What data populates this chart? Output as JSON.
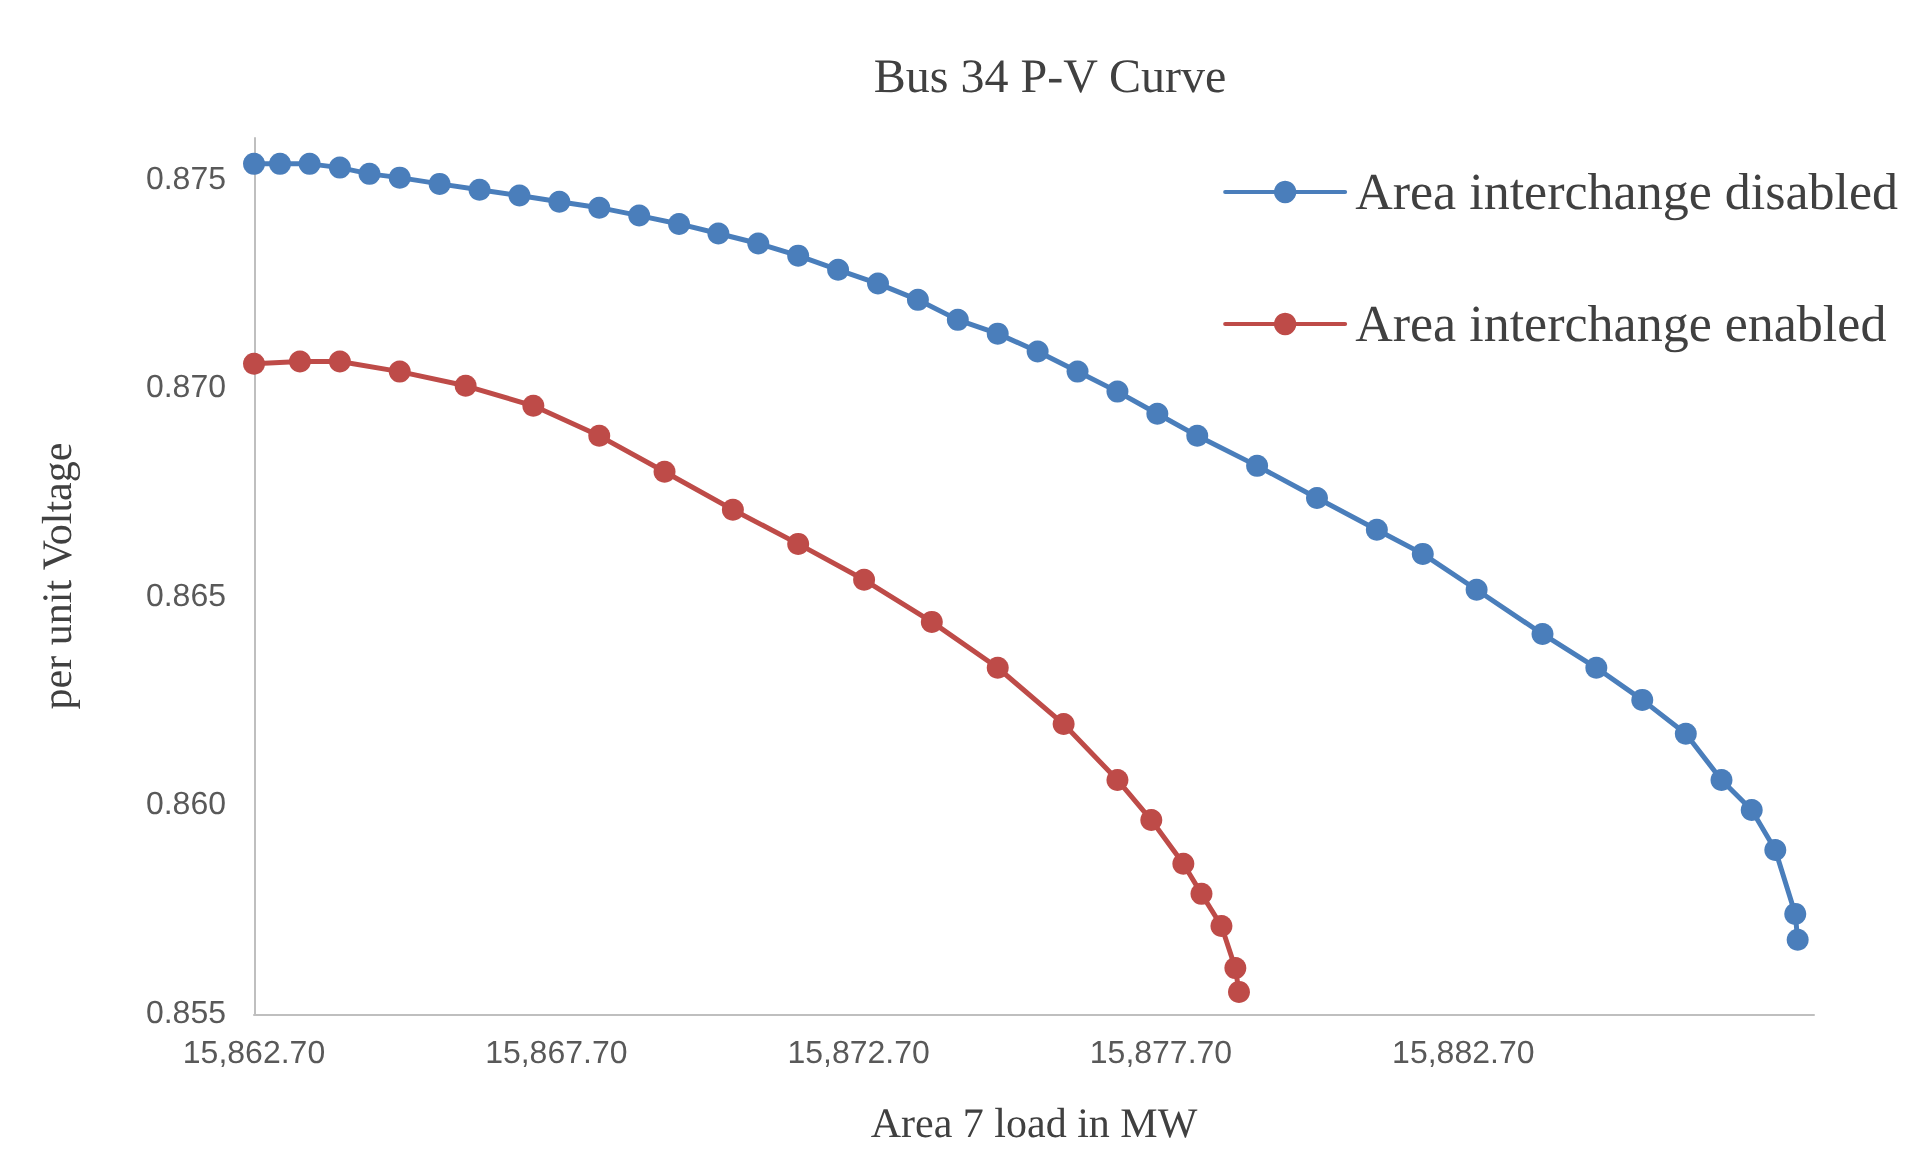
{
  "chart_data": {
    "type": "line",
    "title": "Bus 34 P-V Curve",
    "xlabel": "Area 7 load in MW",
    "ylabel": "per unit Voltage",
    "xlim": [
      15862.7,
      15888.5
    ],
    "xticks": [
      {
        "value": 15862.7,
        "label": "15,862.70"
      },
      {
        "value": 15867.7,
        "label": "15,867.70"
      },
      {
        "value": 15872.7,
        "label": "15,872.70"
      },
      {
        "value": 15877.7,
        "label": "15,877.70"
      },
      {
        "value": 15882.7,
        "label": "15,882.70"
      }
    ],
    "ylim": [
      0.855,
      0.876
    ],
    "yticks": [
      0.855,
      {
        "value": 0.86,
        "label": "0.860"
      },
      0.865,
      {
        "value": 0.87,
        "label": "0.870"
      },
      0.875
    ],
    "grid": false,
    "legend": "top right",
    "marker": "circle",
    "line_style": "solid",
    "series": [
      {
        "name": "Area interchange disabled",
        "color": "#4a7ebb",
        "x": [
          15862.7,
          15863.13,
          15863.62,
          15864.12,
          15864.61,
          15865.11,
          15865.77,
          15866.43,
          15867.09,
          15867.75,
          15868.41,
          15869.07,
          15869.73,
          15870.38,
          15871.04,
          15871.7,
          15872.36,
          15873.02,
          15873.68,
          15874.34,
          15875.0,
          15875.66,
          15876.32,
          15876.98,
          15877.64,
          15878.3,
          15879.29,
          15880.28,
          15881.27,
          15882.03,
          15882.92,
          15884.01,
          15884.9,
          15885.66,
          15886.38,
          15886.97,
          15887.47,
          15887.86,
          15888.19,
          15888.23
        ],
        "values": [
          0.87538,
          0.87538,
          0.87538,
          0.87529,
          0.87514,
          0.87505,
          0.8749,
          0.87476,
          0.87462,
          0.87447,
          0.87433,
          0.87414,
          0.87394,
          0.87371,
          0.87347,
          0.87318,
          0.87284,
          0.87251,
          0.87212,
          0.87164,
          0.87131,
          0.87088,
          0.8704,
          0.86992,
          0.86939,
          0.86886,
          0.86814,
          0.86737,
          0.86661,
          0.86603,
          0.86517,
          0.86411,
          0.8633,
          0.86253,
          0.86172,
          0.86061,
          0.85989,
          0.85893,
          0.8574,
          0.85678
        ]
      },
      {
        "name": "Area interchange enabled",
        "color": "#be4b48",
        "x": [
          15862.7,
          15863.46,
          15864.12,
          15865.11,
          15866.2,
          15867.32,
          15868.41,
          15869.49,
          15870.62,
          15871.7,
          15872.79,
          15873.91,
          15875.0,
          15876.09,
          15876.98,
          15877.54,
          15878.07,
          15878.37,
          15878.7,
          15878.93,
          15878.99
        ],
        "values": [
          0.87059,
          0.87064,
          0.87064,
          0.8704,
          0.87006,
          0.86958,
          0.86886,
          0.868,
          0.86709,
          0.86627,
          0.86541,
          0.8644,
          0.8633,
          0.86195,
          0.86061,
          0.85965,
          0.8586,
          0.85788,
          0.85711,
          0.8561,
          0.85553
        ]
      }
    ]
  }
}
